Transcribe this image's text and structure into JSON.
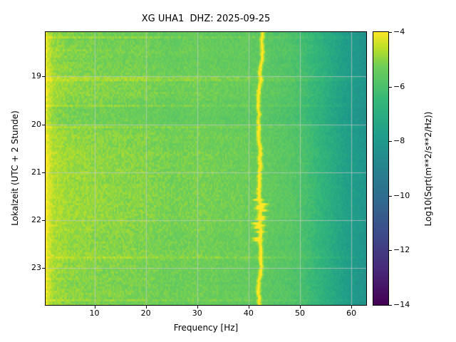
{
  "figure": {
    "title": "XG UHA1  DHZ: 2025-09-25",
    "xlabel": "Frequency [Hz]",
    "ylabel": "Lokalzeit (UTC + 2 Stunde)"
  },
  "chart_data": {
    "type": "heatmap",
    "title": "XG UHA1  DHZ: 2025-09-25",
    "xlabel": "Frequency [Hz]",
    "ylabel": "Lokalzeit (UTC + 2 Stunde)",
    "x_range_hz": [
      0.5,
      62.9
    ],
    "x_ticks": [
      10,
      20,
      30,
      40,
      50,
      60
    ],
    "x_tick_labels": [
      "10",
      "20",
      "30",
      "40",
      "50",
      "60"
    ],
    "y_range_hours": [
      18.07,
      23.77
    ],
    "y_ticks": [
      19,
      20,
      21,
      22,
      23
    ],
    "y_tick_labels": [
      "19",
      "20",
      "21",
      "22",
      "23"
    ],
    "grid": true,
    "grid_color": "#cbcbcb",
    "background": "#ffffff",
    "colorbar": {
      "label": "Log10(Sqrt(m**2/s**2/Hz))",
      "ticks": [
        -4,
        -6,
        -8,
        -10,
        -12,
        -14
      ],
      "tick_labels": [
        "−4",
        "−6",
        "−8",
        "−10",
        "−12",
        "−14"
      ],
      "range": [
        -14,
        -4
      ],
      "colormap": "viridis",
      "stops": [
        [
          0,
          "#440154"
        ],
        [
          0.125,
          "#482878"
        ],
        [
          0.25,
          "#3e4989"
        ],
        [
          0.375,
          "#31688e"
        ],
        [
          0.5,
          "#26828e"
        ],
        [
          0.625,
          "#1f9e89"
        ],
        [
          0.75,
          "#35b779"
        ],
        [
          0.875,
          "#6ece58"
        ],
        [
          0.9375,
          "#b5de2b"
        ],
        [
          1,
          "#fde725"
        ]
      ]
    },
    "spectral_base_profile": [
      [
        0.5,
        -4.2
      ],
      [
        1.0,
        -4.5
      ],
      [
        2,
        -4.9
      ],
      [
        5,
        -5.1
      ],
      [
        10,
        -5.2
      ],
      [
        15,
        -5.25
      ],
      [
        20,
        -5.3
      ],
      [
        25,
        -5.45
      ],
      [
        30,
        -5.4
      ],
      [
        35,
        -5.5
      ],
      [
        40,
        -5.55
      ],
      [
        44,
        -5.7
      ],
      [
        46,
        -5.8
      ],
      [
        48,
        -5.9
      ],
      [
        50,
        -6.1
      ],
      [
        53,
        -6.6
      ],
      [
        56,
        -7.2
      ],
      [
        59,
        -7.8
      ],
      [
        62,
        -8.2
      ],
      [
        62.9,
        -8.4
      ]
    ],
    "tonal_line": {
      "center_hz": 42.6,
      "wiggle_hz": 0.5,
      "amplitude": 1.8,
      "width_hz": 0.4
    },
    "noise_amplitude": 0.5
  }
}
